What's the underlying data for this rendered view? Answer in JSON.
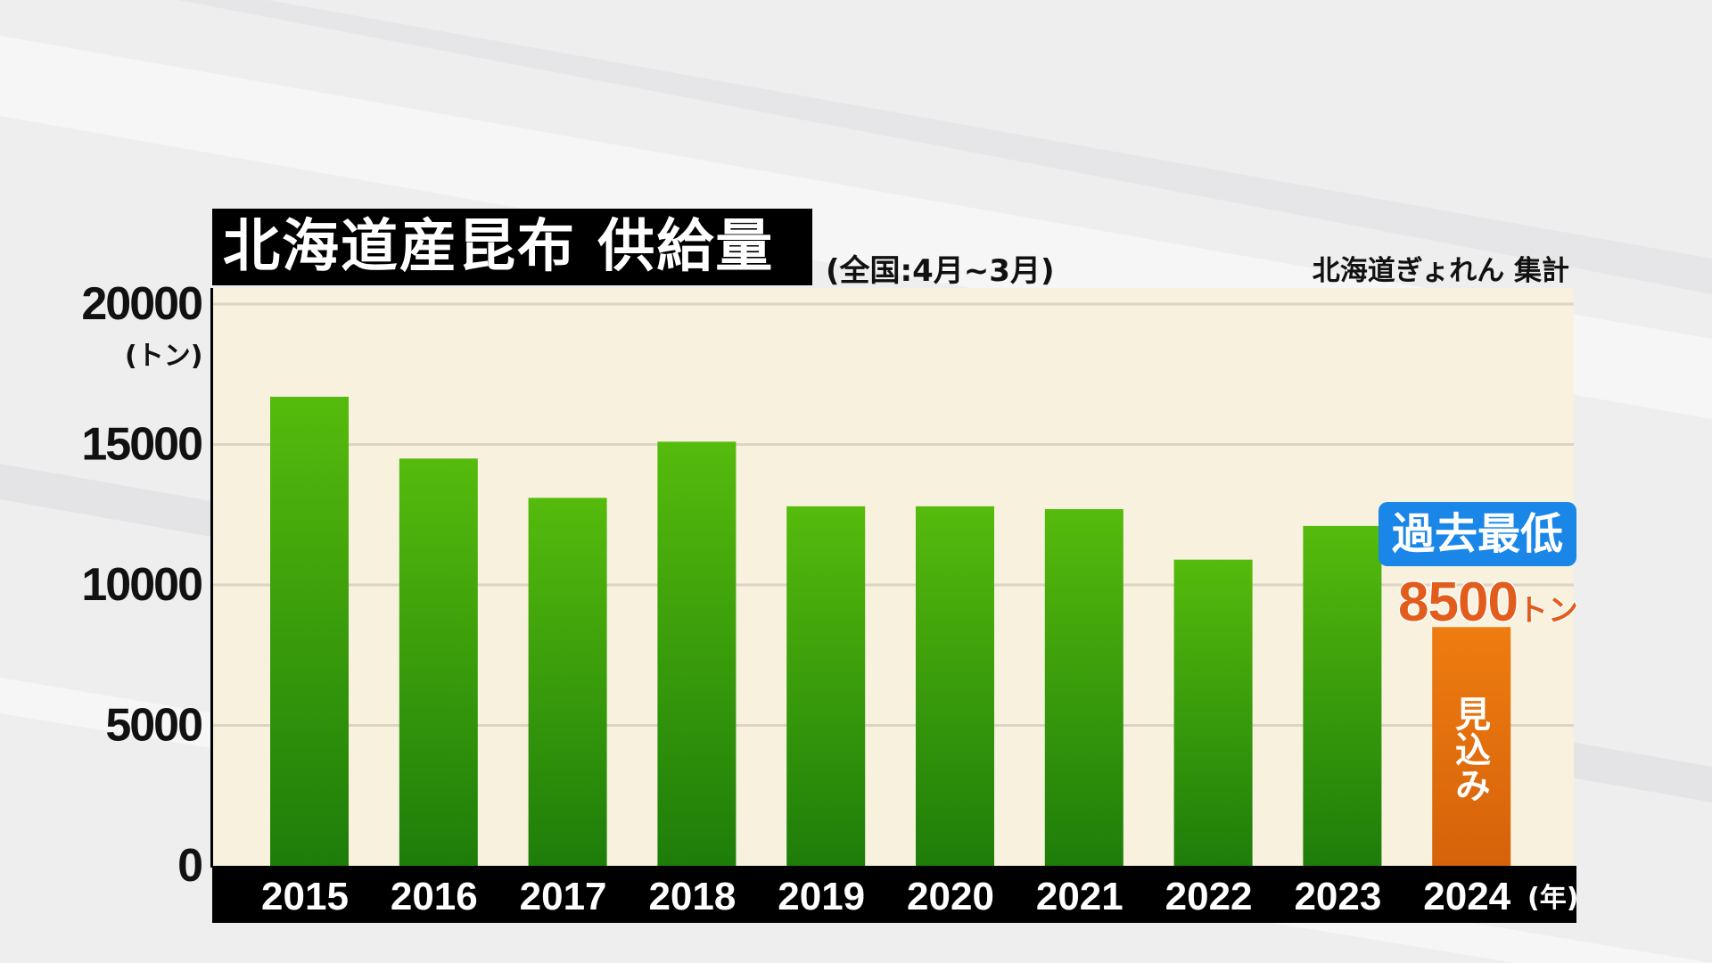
{
  "chart_data": {
    "type": "bar",
    "title": "北海道産昆布 供給量",
    "subtitle": "(全国:4月~3月)",
    "source": "北海道ぎょれん 集計",
    "ylabel": "(トン)",
    "xlabel": "(年)",
    "categories": [
      "2015",
      "2016",
      "2017",
      "2018",
      "2019",
      "2020",
      "2021",
      "2022",
      "2023",
      "2024"
    ],
    "values": [
      16700,
      14500,
      13100,
      15100,
      12800,
      12800,
      12700,
      10900,
      12100,
      8500
    ],
    "ylim": [
      0,
      20000
    ],
    "yticks": [
      0,
      5000,
      10000,
      15000,
      20000
    ],
    "grid": true,
    "highlight": {
      "category": "2024",
      "badge": "過去最低",
      "value_label": "8500",
      "value_unit": "トン",
      "bar_label": "見込み"
    }
  },
  "colors": {
    "bar_top": "#55bb0c",
    "bar_bottom": "#1e7d0a",
    "highlight_top": "#ee7c10",
    "highlight_bottom": "#d6620a",
    "plot_background": "#f8f1de",
    "badge": "#1a86e8",
    "value_text": "#e25c1c"
  }
}
